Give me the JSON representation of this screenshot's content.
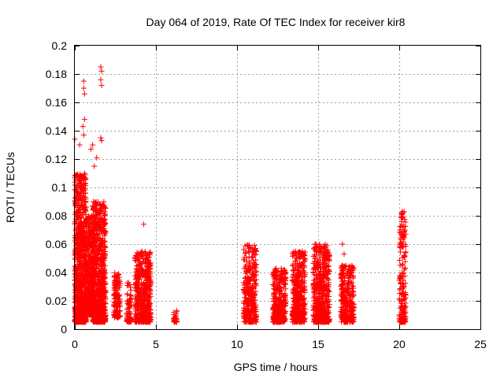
{
  "chart_data": {
    "type": "scatter",
    "title": "Day 064 of 2019, Rate Of TEC Index for receiver kir8",
    "xlabel": "GPS time / hours",
    "ylabel": "ROTI / TECUs",
    "xlim": [
      0,
      25
    ],
    "ylim": [
      0,
      0.2
    ],
    "grid": true,
    "x_ticks": [
      0,
      5,
      10,
      15,
      20,
      25
    ],
    "y_ticks": [
      0,
      0.02,
      0.04,
      0.06,
      0.08,
      0.1,
      0.12,
      0.14,
      0.16,
      0.18,
      0.2
    ],
    "marker": "+",
    "color": "#ff0000",
    "clusters": [
      {
        "x0": 0.0,
        "x1": 0.7,
        "y_min": 0.005,
        "y_max": 0.11,
        "n": 900
      },
      {
        "x0": 0.7,
        "x1": 1.2,
        "y_min": 0.01,
        "y_max": 0.08,
        "n": 450
      },
      {
        "x0": 1.1,
        "x1": 1.9,
        "y_min": 0.005,
        "y_max": 0.09,
        "n": 800
      },
      {
        "x0": 2.4,
        "x1": 2.8,
        "y_min": 0.008,
        "y_max": 0.04,
        "n": 140
      },
      {
        "x0": 3.2,
        "x1": 3.5,
        "y_min": 0.005,
        "y_max": 0.033,
        "n": 70
      },
      {
        "x0": 3.7,
        "x1": 4.7,
        "y_min": 0.005,
        "y_max": 0.055,
        "n": 500
      },
      {
        "x0": 6.1,
        "x1": 6.3,
        "y_min": 0.005,
        "y_max": 0.014,
        "n": 30
      },
      {
        "x0": 10.4,
        "x1": 11.2,
        "y_min": 0.005,
        "y_max": 0.06,
        "n": 350
      },
      {
        "x0": 12.2,
        "x1": 13.0,
        "y_min": 0.005,
        "y_max": 0.043,
        "n": 400
      },
      {
        "x0": 13.4,
        "x1": 14.2,
        "y_min": 0.005,
        "y_max": 0.055,
        "n": 420
      },
      {
        "x0": 14.7,
        "x1": 15.7,
        "y_min": 0.005,
        "y_max": 0.06,
        "n": 500
      },
      {
        "x0": 16.4,
        "x1": 17.2,
        "y_min": 0.005,
        "y_max": 0.045,
        "n": 300
      },
      {
        "x0": 20.0,
        "x1": 20.4,
        "y_min": 0.005,
        "y_max": 0.083,
        "n": 180
      }
    ],
    "outliers": [
      {
        "x": 0.55,
        "y": 0.175
      },
      {
        "x": 0.55,
        "y": 0.17
      },
      {
        "x": 0.6,
        "y": 0.166
      },
      {
        "x": 0.6,
        "y": 0.148
      },
      {
        "x": 0.5,
        "y": 0.143
      },
      {
        "x": 0.55,
        "y": 0.137
      },
      {
        "x": 0.0,
        "y": 0.134
      },
      {
        "x": 0.3,
        "y": 0.13
      },
      {
        "x": 1.6,
        "y": 0.185
      },
      {
        "x": 1.65,
        "y": 0.182
      },
      {
        "x": 1.6,
        "y": 0.176
      },
      {
        "x": 1.65,
        "y": 0.172
      },
      {
        "x": 1.6,
        "y": 0.135
      },
      {
        "x": 1.65,
        "y": 0.133
      },
      {
        "x": 1.1,
        "y": 0.13
      },
      {
        "x": 1.0,
        "y": 0.127
      },
      {
        "x": 1.35,
        "y": 0.121
      },
      {
        "x": 1.2,
        "y": 0.115
      },
      {
        "x": 4.25,
        "y": 0.074
      },
      {
        "x": 16.5,
        "y": 0.06
      },
      {
        "x": 16.6,
        "y": 0.053
      },
      {
        "x": 20.2,
        "y": 0.083
      },
      {
        "x": 20.15,
        "y": 0.082
      },
      {
        "x": 20.3,
        "y": 0.066
      },
      {
        "x": 20.2,
        "y": 0.065
      }
    ]
  }
}
